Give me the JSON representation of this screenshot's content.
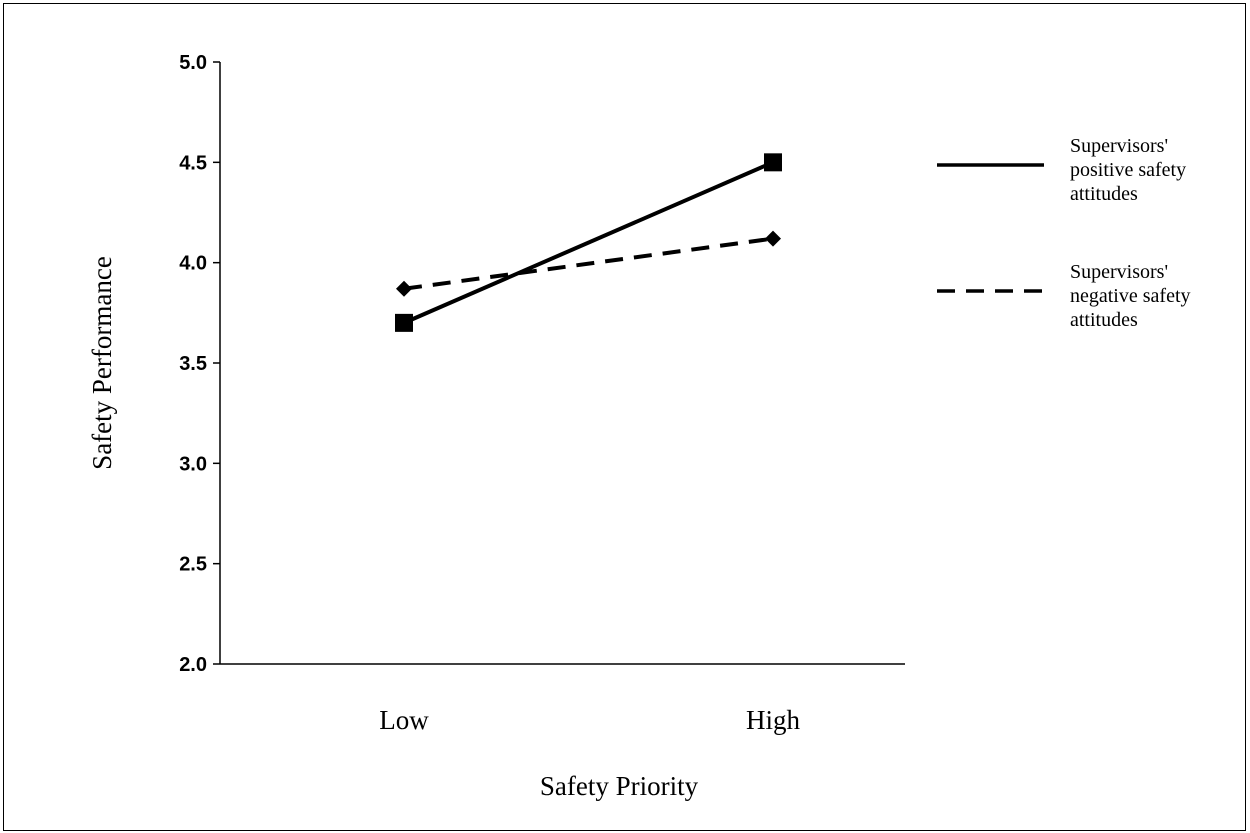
{
  "chart_data": {
    "type": "line",
    "title": "",
    "xlabel": "Safety Priority",
    "ylabel": "Safety Performance",
    "categories": [
      "Low",
      "High"
    ],
    "ylim": [
      2.0,
      5.0
    ],
    "yticks": [
      "5.0",
      "4.5",
      "4.0",
      "3.5",
      "3.0",
      "2.5",
      "2.0"
    ],
    "grid": false,
    "legend_position": "right",
    "series": [
      {
        "name": "Supervisors' positive safety attitudes",
        "legend_lines": [
          "Supervisors'",
          "positive safety",
          "attitudes"
        ],
        "values": [
          3.7,
          4.5
        ],
        "line_style": "solid",
        "marker": "square",
        "color": "#000000"
      },
      {
        "name": "Supervisors' negative safety attitudes",
        "legend_lines": [
          "Supervisors'",
          "negative safety",
          "attitudes"
        ],
        "values": [
          3.87,
          4.12
        ],
        "line_style": "dashed",
        "marker": "diamond",
        "color": "#000000"
      }
    ]
  }
}
